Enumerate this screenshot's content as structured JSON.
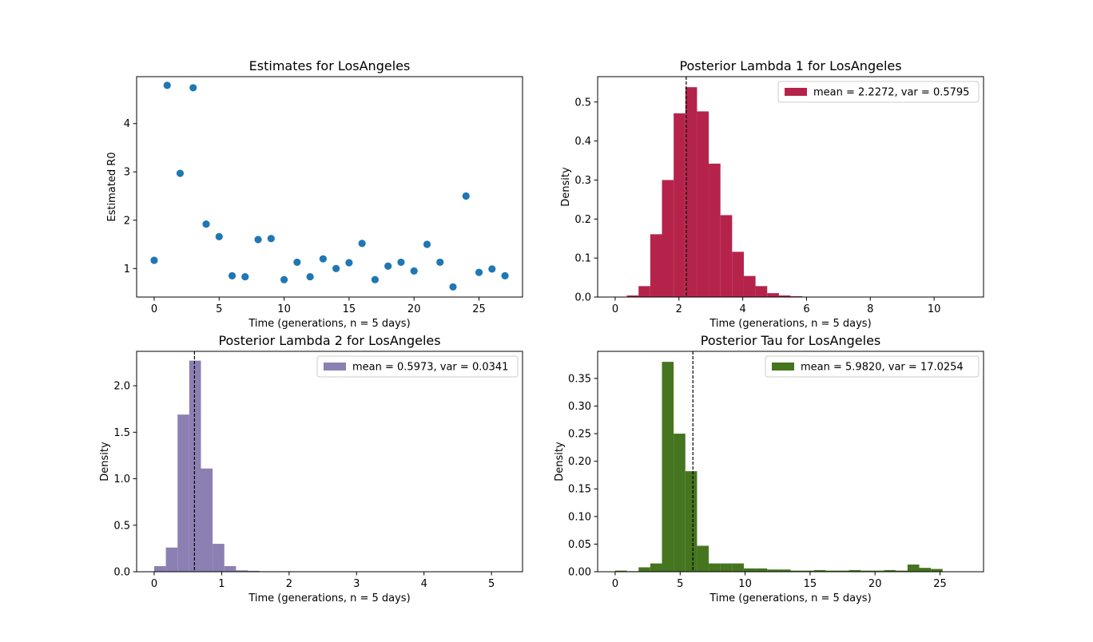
{
  "chart_data": [
    {
      "type": "scatter",
      "title": "Estimates for LosAngeles",
      "xlabel": "Time (generations, n = 5 days)",
      "ylabel": "Estimated R0",
      "xlim": [
        -1.35,
        28.35
      ],
      "ylim": [
        0.41,
        4.97
      ],
      "xticks": [
        0,
        5,
        10,
        15,
        20,
        25
      ],
      "yticks": [
        1,
        2,
        3,
        4
      ],
      "color": "#1f77b4",
      "x": [
        0,
        1,
        2,
        3,
        4,
        5,
        6,
        7,
        8,
        9,
        10,
        11,
        12,
        13,
        14,
        15,
        16,
        17,
        18,
        19,
        20,
        21,
        22,
        23,
        24,
        25,
        26,
        27
      ],
      "y": [
        1.17,
        4.79,
        2.97,
        4.74,
        1.92,
        1.66,
        0.85,
        0.83,
        1.6,
        1.62,
        0.77,
        1.13,
        0.83,
        1.2,
        1.0,
        1.12,
        1.52,
        0.77,
        1.05,
        1.13,
        0.95,
        1.5,
        1.13,
        0.62,
        2.5,
        0.92,
        0.99,
        0.85
      ]
    },
    {
      "type": "histogram",
      "title": "Posterior Lambda 1 for LosAngeles",
      "xlabel": "Time (generations, n = 5 days)",
      "ylabel": "Density",
      "xlim": [
        -0.55,
        11.55
      ],
      "ylim": [
        0,
        0.565
      ],
      "xticks": [
        0,
        2,
        4,
        6,
        8,
        10
      ],
      "yticks": [
        0.0,
        0.1,
        0.2,
        0.3,
        0.4,
        0.5
      ],
      "tick_decimals": 1,
      "color": "#b5234b",
      "legend": "mean = 2.2272, var = 0.5795",
      "legend_position": "upper-right",
      "mean_line": 2.2272,
      "bin_start": 0.0,
      "bin_width": 0.3667,
      "values": [
        0.001,
        0.004,
        0.028,
        0.161,
        0.3,
        0.471,
        0.538,
        0.476,
        0.342,
        0.21,
        0.116,
        0.054,
        0.028,
        0.01,
        0.004,
        0.002,
        0.001,
        0,
        0,
        0,
        0,
        0,
        0,
        0,
        0,
        0,
        0,
        0,
        0,
        0
      ]
    },
    {
      "type": "histogram",
      "title": "Posterior Lambda 2 for LosAngeles",
      "xlabel": "Time (generations, n = 5 days)",
      "ylabel": "Density",
      "xlim": [
        -0.26,
        5.46
      ],
      "ylim": [
        0,
        2.37
      ],
      "xticks": [
        0,
        1,
        2,
        3,
        4,
        5
      ],
      "yticks": [
        0.0,
        0.5,
        1.0,
        1.5,
        2.0
      ],
      "tick_decimals": 1,
      "color": "#8c7fb2",
      "legend": "mean = 0.5973, var = 0.0341",
      "legend_position": "upper-right",
      "mean_line": 0.5973,
      "bin_start": 0.0,
      "bin_width": 0.1733,
      "values": [
        0.06,
        0.26,
        1.69,
        2.27,
        1.11,
        0.3,
        0.06,
        0.015,
        0.01,
        0.005,
        0.005,
        0.005,
        0.004,
        0.004,
        0.003,
        0.002,
        0.003,
        0.004,
        0.002,
        0.003,
        0.002,
        0.002,
        0.004,
        0.002,
        0.003,
        0.001,
        0.001,
        0.001,
        0.001,
        0.002
      ]
    },
    {
      "type": "histogram",
      "title": "Posterior Tau for LosAngeles",
      "xlabel": "Time (generations, n = 5 days)",
      "ylabel": "Density",
      "xlim": [
        -1.35,
        28.35
      ],
      "ylim": [
        0,
        0.399
      ],
      "xticks": [
        0,
        5,
        10,
        15,
        20,
        25
      ],
      "yticks": [
        0.0,
        0.05,
        0.1,
        0.15,
        0.2,
        0.25,
        0.3,
        0.35
      ],
      "tick_decimals": 2,
      "color": "#45751f",
      "legend": "mean = 5.9820, var = 17.0254",
      "legend_position": "upper-right",
      "mean_line": 5.982,
      "bin_start": 0.0,
      "bin_width": 0.9,
      "values": [
        0.002,
        0.001,
        0.008,
        0.015,
        0.38,
        0.25,
        0.182,
        0.047,
        0.015,
        0.015,
        0.015,
        0.006,
        0.006,
        0.004,
        0.004,
        0.002,
        0.002,
        0.003,
        0.002,
        0.002,
        0.003,
        0.002,
        0.002,
        0.003,
        0.002,
        0.013,
        0.007,
        0.005,
        0,
        0
      ]
    }
  ]
}
